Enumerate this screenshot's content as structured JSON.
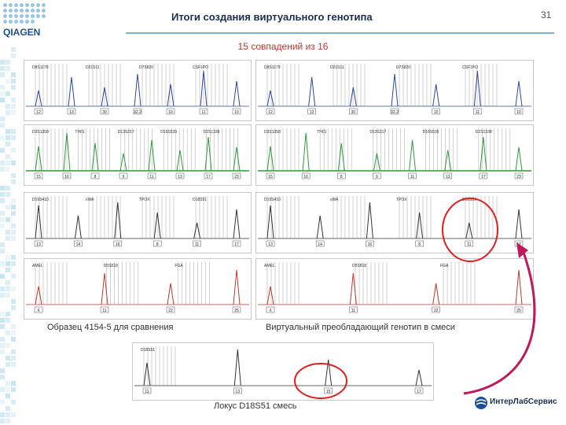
{
  "slide": {
    "title": "Итоги создания виртуального генотипа",
    "subtitle": "15 совпадений из 16",
    "page_number": "31"
  },
  "logos": {
    "qiagen": "QIAGEN",
    "interlab": "ИнтерЛабСервис"
  },
  "captions": {
    "left": "Образец 4154-5 для сравнения",
    "right": "Виртуальный преобладающий генотип в смеси",
    "bottom": "Локус D18S51 смесь"
  },
  "colors": {
    "blue_dye": "#2946a8",
    "green_dye": "#2e9a3b",
    "black_dye": "#333333",
    "red_dye": "#c0392b",
    "highlight_circle": "#e02020",
    "arrow": "#c0185a",
    "header_line": "#7fb0cc"
  },
  "left_panels": [
    {
      "locus_labels": [
        "D8S1179",
        "D21S11",
        "D7S820",
        "CSF1PO"
      ],
      "allele_labels": [
        "12",
        "13",
        "30",
        "32.2",
        "10",
        "11",
        "10"
      ],
      "dye": "blue"
    },
    {
      "locus_labels": [
        "D3S1358",
        "TH01",
        "D13S317",
        "D16S539",
        "D2S1338"
      ],
      "allele_labels": [
        "15",
        "16",
        "8",
        "9",
        "11",
        "13",
        "17",
        "23"
      ],
      "dye": "green"
    },
    {
      "locus_labels": [
        "D19S433",
        "vWA",
        "TPOX",
        "D18S51"
      ],
      "allele_labels": [
        "13",
        "14",
        "16",
        "8",
        "11",
        "17"
      ],
      "dye": "black"
    },
    {
      "locus_labels": [
        "AMEL",
        "D5S818",
        "FGA"
      ],
      "allele_labels": [
        "X",
        "11",
        "22",
        "25"
      ],
      "dye": "red"
    }
  ],
  "right_panels": [
    {
      "locus_labels": [
        "D8S1179",
        "D21S11",
        "D7S820",
        "CSF1PO"
      ],
      "allele_labels": [
        "12",
        "13",
        "30",
        "32.2",
        "10",
        "11",
        "10"
      ],
      "dye": "blue"
    },
    {
      "locus_labels": [
        "D3S1358",
        "TH01",
        "D13S317",
        "D16S539",
        "D2S1338"
      ],
      "allele_labels": [
        "15",
        "16",
        "8",
        "9",
        "11",
        "13",
        "17",
        "23"
      ],
      "dye": "green"
    },
    {
      "locus_labels": [
        "D19S433",
        "vWA",
        "TPOX",
        "D18S51"
      ],
      "allele_labels": [
        "13",
        "14",
        "16",
        "8",
        "11",
        "17"
      ],
      "dye": "black"
    },
    {
      "locus_labels": [
        "AMEL",
        "D5S818",
        "FGA"
      ],
      "allele_labels": [
        "X",
        "11",
        "22",
        "25"
      ],
      "dye": "red"
    }
  ],
  "bottom_panel": {
    "locus_labels": [
      "D18S51"
    ],
    "allele_labels": [
      "11",
      "13",
      "15",
      "17"
    ],
    "dye": "black"
  }
}
